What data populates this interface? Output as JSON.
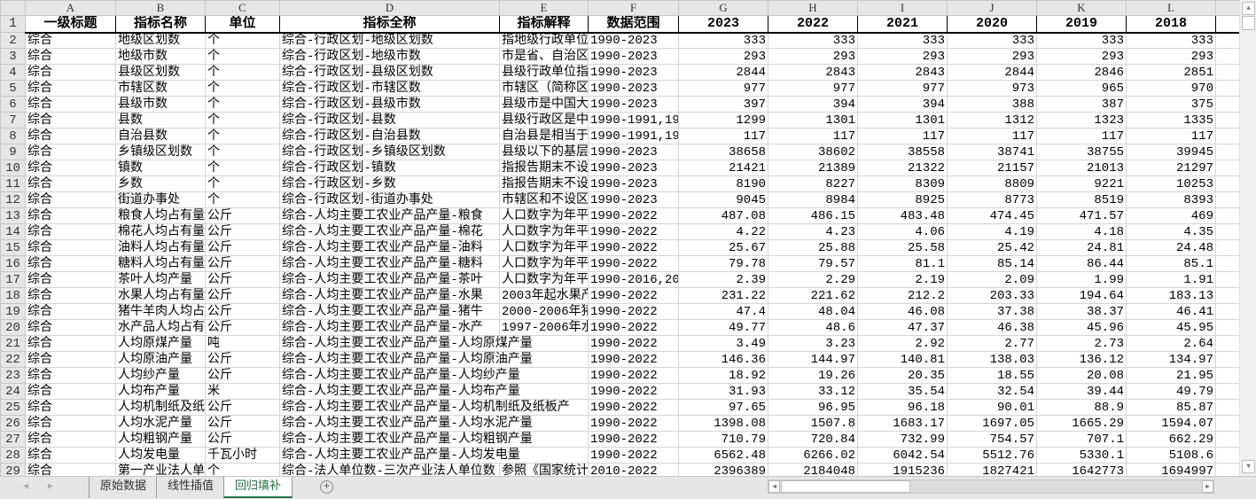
{
  "sheet": {
    "column_letters": [
      "A",
      "B",
      "C",
      "D",
      "E",
      "F",
      "G",
      "H",
      "I",
      "J",
      "K",
      "L",
      ""
    ],
    "headers": [
      "一级标题",
      "指标名称",
      "单位",
      "指标全称",
      "指标解释",
      "数据范围",
      "2023",
      "2022",
      "2021",
      "2020",
      "2019",
      "2018",
      ""
    ],
    "rows": [
      [
        "综合",
        "地级区划数",
        "个",
        "综合-行政区划-地级区划数",
        "指地级行政单位",
        "1990-2023",
        "333",
        "333",
        "333",
        "333",
        "333",
        "333"
      ],
      [
        "综合",
        "地级市数",
        "个",
        "综合-行政区划-地级市数",
        "市是省、自治区",
        "1990-2023",
        "293",
        "293",
        "293",
        "293",
        "293",
        "293"
      ],
      [
        "综合",
        "县级区划数",
        "个",
        "综合-行政区划-县级区划数",
        "县级行政单位指",
        "1990-2023",
        "2844",
        "2843",
        "2843",
        "2844",
        "2846",
        "2851"
      ],
      [
        "综合",
        "市辖区数",
        "个",
        "综合-行政区划-市辖区数",
        "市辖区（简称区",
        "1990-2023",
        "977",
        "977",
        "977",
        "973",
        "965",
        "970"
      ],
      [
        "综合",
        "县级市数",
        "个",
        "综合-行政区划-县级市数",
        "县级市是中国大",
        "1990-2023",
        "397",
        "394",
        "394",
        "388",
        "387",
        "375"
      ],
      [
        "综合",
        "县数",
        "个",
        "综合-行政区划-县数",
        "县级行政区是中",
        "1990-1991,19",
        "1299",
        "1301",
        "1301",
        "1312",
        "1323",
        "1335"
      ],
      [
        "综合",
        "自治县数",
        "个",
        "综合-行政区划-自治县数",
        "自治县是相当于",
        "1990-1991,19",
        "117",
        "117",
        "117",
        "117",
        "117",
        "117"
      ],
      [
        "综合",
        "乡镇级区划数",
        "个",
        "综合-行政区划-乡镇级区划数",
        "县级以下的基层",
        "1990-2023",
        "38658",
        "38602",
        "38558",
        "38741",
        "38755",
        "39945"
      ],
      [
        "综合",
        "镇数",
        "个",
        "综合-行政区划-镇数",
        "指报告期末不设",
        "1990-2023",
        "21421",
        "21389",
        "21322",
        "21157",
        "21013",
        "21297"
      ],
      [
        "综合",
        "乡数",
        "个",
        "综合-行政区划-乡数",
        "指报告期末不设",
        "1990-2023",
        "8190",
        "8227",
        "8309",
        "8809",
        "9221",
        "10253"
      ],
      [
        "综合",
        "街道办事处",
        "个",
        "综合-行政区划-街道办事处",
        "市辖区和不设区",
        "1990-2023",
        "9045",
        "8984",
        "8925",
        "8773",
        "8519",
        "8393"
      ],
      [
        "综合",
        "粮食人均占有量",
        "公斤",
        "综合-人均主要工农业产品产量-粮食",
        "人口数字为年平",
        "1990-2022",
        "487.08",
        "486.15",
        "483.48",
        "474.45",
        "471.57",
        "469"
      ],
      [
        "综合",
        "棉花人均占有量",
        "公斤",
        "综合-人均主要工农业产品产量-棉花",
        "人口数字为年平",
        "1990-2022",
        "4.22",
        "4.23",
        "4.06",
        "4.19",
        "4.18",
        "4.35"
      ],
      [
        "综合",
        "油料人均占有量",
        "公斤",
        "综合-人均主要工农业产品产量-油料",
        "人口数字为年平",
        "1990-2022",
        "25.67",
        "25.88",
        "25.58",
        "25.42",
        "24.81",
        "24.48"
      ],
      [
        "综合",
        "糖料人均占有量",
        "公斤",
        "综合-人均主要工农业产品产量-糖料",
        "人口数字为年平",
        "1990-2022",
        "79.78",
        "79.57",
        "81.1",
        "85.14",
        "86.44",
        "85.1"
      ],
      [
        "综合",
        "茶叶人均产量",
        "公斤",
        "综合-人均主要工农业产品产量-茶叶",
        "人口数字为年平",
        "1990-2016,20",
        "2.39",
        "2.29",
        "2.19",
        "2.09",
        "1.99",
        "1.91"
      ],
      [
        "综合",
        "水果人均占有量",
        "公斤",
        "综合-人均主要工农业产品产量-水果",
        "2003年起水果产",
        "1990-2022",
        "231.22",
        "221.62",
        "212.2",
        "203.33",
        "194.64",
        "183.13"
      ],
      [
        "综合",
        "猪牛羊肉人均占",
        "公斤",
        "综合-人均主要工农业产品产量-猪牛",
        "2000-2006年猪",
        "1990-2022",
        "47.4",
        "48.04",
        "46.08",
        "37.38",
        "38.37",
        "46.41"
      ],
      [
        "综合",
        "水产品人均占有",
        "公斤",
        "综合-人均主要工农业产品产量-水产",
        "1997-2006年水",
        "1990-2022",
        "49.77",
        "48.6",
        "47.37",
        "46.38",
        "45.96",
        "45.95"
      ],
      [
        "综合",
        "人均原煤产量",
        "吨",
        "综合-人均主要工农业产品产量-人均原煤产量",
        "",
        "1990-2022",
        "3.49",
        "3.23",
        "2.92",
        "2.77",
        "2.73",
        "2.64"
      ],
      [
        "综合",
        "人均原油产量",
        "公斤",
        "综合-人均主要工农业产品产量-人均原油产量",
        "",
        "1990-2022",
        "146.36",
        "144.97",
        "140.81",
        "138.03",
        "136.12",
        "134.97"
      ],
      [
        "综合",
        "人均纱产量",
        "公斤",
        "综合-人均主要工农业产品产量-人均纱产量",
        "",
        "1990-2022",
        "18.92",
        "19.26",
        "20.35",
        "18.55",
        "20.08",
        "21.95"
      ],
      [
        "综合",
        "人均布产量",
        "米",
        "综合-人均主要工农业产品产量-人均布产量",
        "",
        "1990-2022",
        "31.93",
        "33.12",
        "35.54",
        "32.54",
        "39.44",
        "49.79"
      ],
      [
        "综合",
        "人均机制纸及纸",
        "公斤",
        "综合-人均主要工农业产品产量-人均机制纸及纸板产",
        "",
        "1990-2022",
        "97.65",
        "96.95",
        "96.18",
        "90.01",
        "88.9",
        "85.87"
      ],
      [
        "综合",
        "人均水泥产量",
        "公斤",
        "综合-人均主要工农业产品产量-人均水泥产量",
        "",
        "1990-2022",
        "1398.08",
        "1507.8",
        "1683.17",
        "1697.05",
        "1665.29",
        "1594.07"
      ],
      [
        "综合",
        "人均粗钢产量",
        "公斤",
        "综合-人均主要工农业产品产量-人均粗钢产量",
        "",
        "1990-2022",
        "710.79",
        "720.84",
        "732.99",
        "754.57",
        "707.1",
        "662.29"
      ],
      [
        "综合",
        "人均发电量",
        "千瓦小时",
        "综合-人均主要工农业产品产量-人均发电量",
        "",
        "1990-2022",
        "6562.48",
        "6266.02",
        "6042.54",
        "5512.76",
        "5330.1",
        "5108.6"
      ],
      [
        "综合",
        "第一产业法人单",
        "个",
        "综合-法人单位数-三次产业法人单位数",
        "参照《国家统计",
        "2010-2022",
        "2396389",
        "2184048",
        "1915236",
        "1827421",
        "1642773",
        "1694997"
      ]
    ]
  },
  "sheet_tabs": [
    {
      "label": "原始数据"
    },
    {
      "label": "线性插值"
    },
    {
      "label": "回归填补",
      "active": true
    }
  ],
  "add_sheet_label": "+",
  "accent_color": "#217346"
}
